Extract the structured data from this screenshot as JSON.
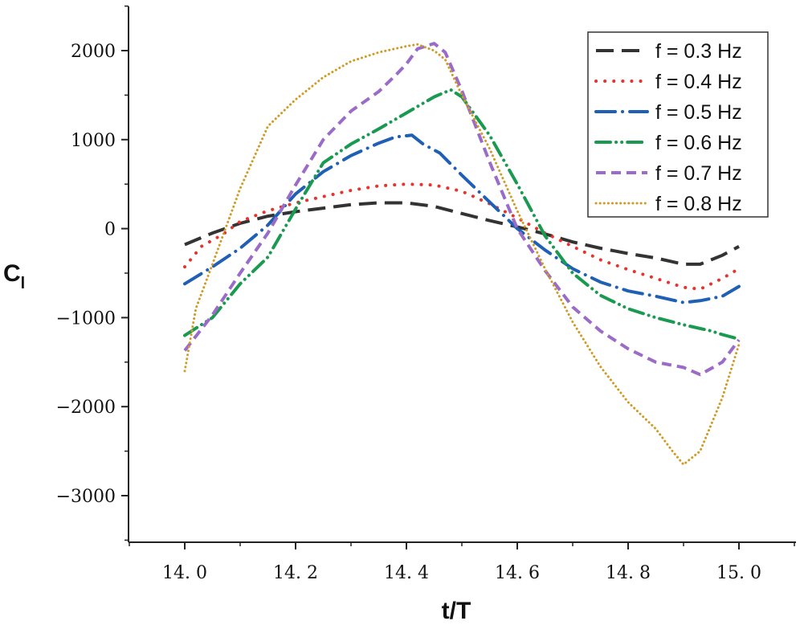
{
  "chart_data": {
    "type": "line",
    "title": "",
    "xlabel": "t/T",
    "ylabel": {
      "main": "C",
      "sub": "l"
    },
    "xlim": [
      13.9,
      15.1
    ],
    "ylim": [
      -3500,
      2500
    ],
    "xticks": [
      14.0,
      14.2,
      14.4,
      14.6,
      14.8,
      15.0
    ],
    "xtick_labels": [
      "14. 0",
      "14. 2",
      "14. 4",
      "14. 6",
      "14. 8",
      "15. 0"
    ],
    "yticks": [
      2000,
      1000,
      0,
      -1000,
      -2000,
      -3000
    ],
    "ytick_labels": [
      "2000",
      "1000",
      "0",
      "−1000",
      "−2000",
      "−3000"
    ],
    "grid": false,
    "legend_position": "top-right",
    "series": [
      {
        "name": "f = 0.3 Hz",
        "color": "#333333",
        "dash": "dash",
        "x": [
          14.0,
          14.05,
          14.1,
          14.15,
          14.2,
          14.25,
          14.3,
          14.35,
          14.4,
          14.45,
          14.5,
          14.55,
          14.6,
          14.65,
          14.7,
          14.75,
          14.8,
          14.85,
          14.9,
          14.93,
          14.97,
          15.0
        ],
        "y": [
          -180,
          -50,
          60,
          140,
          190,
          230,
          270,
          290,
          290,
          250,
          170,
          90,
          20,
          -60,
          -150,
          -220,
          -280,
          -330,
          -400,
          -400,
          -300,
          -200
        ]
      },
      {
        "name": "f = 0.4 Hz",
        "color": "#e8322c",
        "dash": "dot",
        "x": [
          14.0,
          14.03,
          14.07,
          14.1,
          14.15,
          14.2,
          14.25,
          14.3,
          14.35,
          14.4,
          14.45,
          14.5,
          14.55,
          14.6,
          14.65,
          14.7,
          14.75,
          14.8,
          14.85,
          14.9,
          14.93,
          14.97,
          15.0
        ],
        "y": [
          -430,
          -200,
          -60,
          80,
          200,
          290,
          360,
          430,
          480,
          500,
          490,
          420,
          280,
          120,
          -50,
          -200,
          -350,
          -460,
          -560,
          -660,
          -680,
          -560,
          -450
        ]
      },
      {
        "name": "f = 0.5 Hz",
        "color": "#1f5fb4",
        "dash": "dashdot",
        "x": [
          14.0,
          14.05,
          14.1,
          14.15,
          14.2,
          14.25,
          14.3,
          14.35,
          14.38,
          14.41,
          14.43,
          14.46,
          14.5,
          14.55,
          14.6,
          14.65,
          14.7,
          14.75,
          14.8,
          14.85,
          14.9,
          14.93,
          14.97,
          15.0
        ],
        "y": [
          -620,
          -430,
          -220,
          40,
          390,
          640,
          820,
          960,
          1030,
          1050,
          950,
          850,
          600,
          300,
          0,
          -240,
          -450,
          -600,
          -700,
          -760,
          -830,
          -810,
          -760,
          -650
        ]
      },
      {
        "name": "f = 0.6 Hz",
        "color": "#1a9a50",
        "dash": "dashdotdot",
        "x": [
          14.0,
          14.05,
          14.1,
          14.15,
          14.2,
          14.25,
          14.3,
          14.35,
          14.4,
          14.45,
          14.48,
          14.5,
          14.55,
          14.6,
          14.65,
          14.7,
          14.75,
          14.8,
          14.85,
          14.9,
          14.95,
          14.97,
          15.0
        ],
        "y": [
          -1200,
          -1000,
          -620,
          -320,
          220,
          740,
          950,
          1120,
          1300,
          1480,
          1560,
          1480,
          1050,
          500,
          -80,
          -500,
          -750,
          -900,
          -1000,
          -1080,
          -1150,
          -1190,
          -1240
        ]
      },
      {
        "name": "f = 0.7 Hz",
        "color": "#9a6cc8",
        "dash": "shortdash",
        "x": [
          14.0,
          14.05,
          14.1,
          14.15,
          14.2,
          14.25,
          14.3,
          14.35,
          14.38,
          14.4,
          14.42,
          14.45,
          14.47,
          14.5,
          14.55,
          14.6,
          14.65,
          14.7,
          14.75,
          14.8,
          14.85,
          14.9,
          14.93,
          14.97,
          15.0
        ],
        "y": [
          -1370,
          -970,
          -500,
          -50,
          490,
          1000,
          1320,
          1540,
          1720,
          1850,
          2020,
          2080,
          1980,
          1550,
          750,
          0,
          -470,
          -880,
          -1150,
          -1350,
          -1500,
          -1560,
          -1640,
          -1500,
          -1250
        ]
      },
      {
        "name": "f = 0.8 Hz",
        "color": "#d19a24",
        "dash": "finedot",
        "x": [
          14.0,
          14.02,
          14.05,
          14.1,
          14.15,
          14.2,
          14.25,
          14.3,
          14.35,
          14.4,
          14.42,
          14.45,
          14.47,
          14.5,
          14.55,
          14.6,
          14.65,
          14.7,
          14.75,
          14.8,
          14.85,
          14.88,
          14.9,
          14.93,
          14.97,
          15.0
        ],
        "y": [
          -1600,
          -900,
          -400,
          450,
          1150,
          1450,
          1700,
          1880,
          1980,
          2050,
          2070,
          2000,
          1900,
          1500,
          900,
          200,
          -450,
          -1050,
          -1550,
          -1950,
          -2250,
          -2500,
          -2650,
          -2500,
          -1900,
          -1300
        ]
      }
    ]
  }
}
